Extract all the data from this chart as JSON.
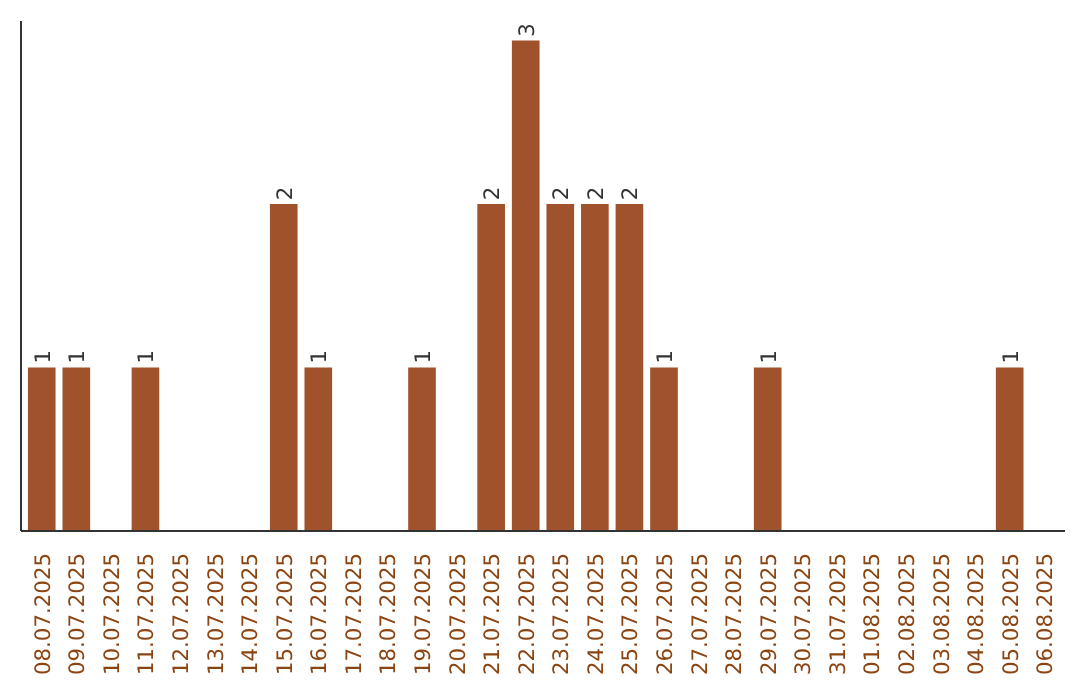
{
  "chart_data": {
    "type": "bar",
    "categories": [
      "08.07.2025",
      "09.07.2025",
      "10.07.2025",
      "11.07.2025",
      "12.07.2025",
      "13.07.2025",
      "14.07.2025",
      "15.07.2025",
      "16.07.2025",
      "17.07.2025",
      "18.07.2025",
      "19.07.2025",
      "20.07.2025",
      "21.07.2025",
      "22.07.2025",
      "23.07.2025",
      "24.07.2025",
      "25.07.2025",
      "26.07.2025",
      "27.07.2025",
      "28.07.2025",
      "29.07.2025",
      "30.07.2025",
      "31.07.2025",
      "01.08.2025",
      "02.08.2025",
      "03.08.2025",
      "04.08.2025",
      "05.08.2025",
      "06.08.2025"
    ],
    "values": [
      1,
      1,
      0,
      1,
      0,
      0,
      0,
      2,
      1,
      0,
      0,
      1,
      0,
      2,
      3,
      2,
      2,
      2,
      1,
      0,
      0,
      1,
      0,
      0,
      0,
      0,
      0,
      0,
      1,
      0
    ],
    "value_labels": [
      "1",
      "1",
      null,
      "1",
      null,
      null,
      null,
      "2",
      "1",
      null,
      null,
      "1",
      null,
      "2",
      "3",
      "2",
      "2",
      "2",
      "1",
      null,
      null,
      "1",
      null,
      null,
      null,
      null,
      null,
      null,
      "1",
      null
    ],
    "color": "#a0522d",
    "grid": false,
    "tick_labels": "x"
  }
}
